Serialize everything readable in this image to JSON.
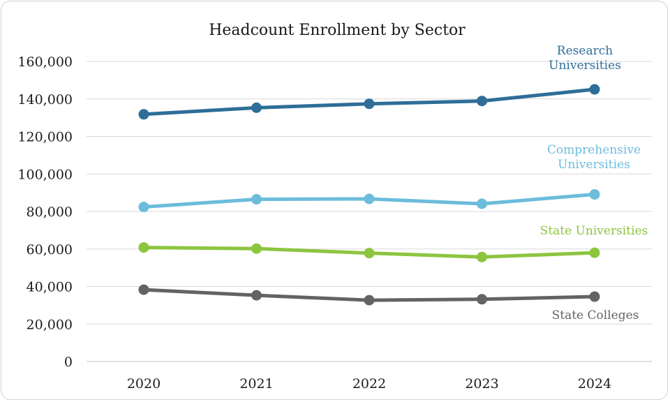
{
  "chart_data": {
    "type": "line",
    "title": "Headcount Enrollment by Sector",
    "xlabel": "",
    "ylabel": "",
    "categories": [
      "2020",
      "2021",
      "2022",
      "2023",
      "2024"
    ],
    "ylim": [
      0,
      160000
    ],
    "y_ticks": [
      "0",
      "20,000",
      "40,000",
      "60,000",
      "80,000",
      "100,000",
      "120,000",
      "140,000",
      "160,000"
    ],
    "grid": "horizontal",
    "legend": "direct labels at right end of each series",
    "series": [
      {
        "name": "Research Universities",
        "label_lines": [
          "Research",
          "Universities"
        ],
        "color": "#2e6e98",
        "values": [
          131800,
          135300,
          137400,
          138900,
          145100
        ]
      },
      {
        "name": "Comprehensive Universities",
        "label_lines": [
          "Comprehensive",
          "Universities"
        ],
        "color": "#6cbcdc",
        "values": [
          82400,
          86500,
          86700,
          84100,
          89100
        ]
      },
      {
        "name": "State Universities",
        "label_lines": [
          "State Universities"
        ],
        "color": "#8cc540",
        "values": [
          60800,
          60200,
          57800,
          55700,
          58000
        ]
      },
      {
        "name": "State Colleges",
        "label_lines": [
          "State Colleges"
        ],
        "color": "#636363",
        "values": [
          38300,
          35300,
          32700,
          33200,
          34600
        ]
      }
    ]
  }
}
